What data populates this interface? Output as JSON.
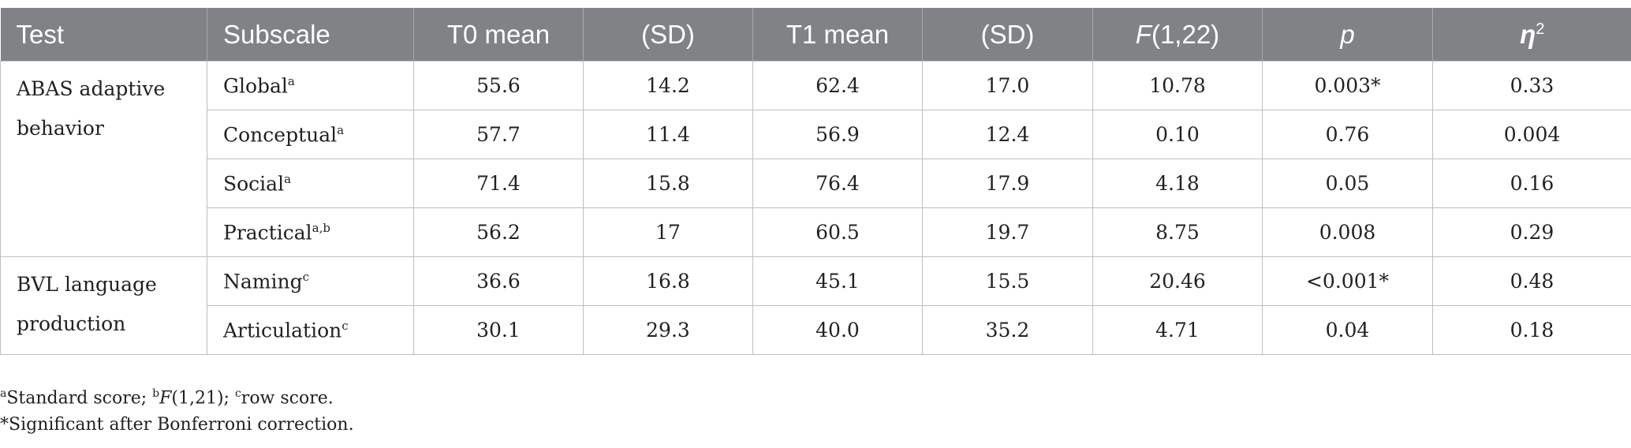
{
  "table": {
    "headers": [
      "Test",
      "Subscale",
      "T0 mean",
      "(SD)",
      "T1 mean",
      "(SD)",
      "F",
      "(1,22)",
      "p",
      "η",
      "2"
    ],
    "groups": [
      {
        "test": "ABAS adaptive behavior"
      },
      {
        "test": "BVL language production"
      }
    ],
    "rows": [
      {
        "subscale": "Global",
        "sup": "a",
        "cells": [
          "55.6",
          "14.2",
          "62.4",
          "17.0",
          "10.78",
          "0.003*",
          "0.33"
        ]
      },
      {
        "subscale": "Conceptual",
        "sup": "a",
        "cells": [
          "57.7",
          "11.4",
          "56.9",
          "12.4",
          "0.10",
          "0.76",
          "0.004"
        ]
      },
      {
        "subscale": "Social",
        "sup": "a",
        "cells": [
          "71.4",
          "15.8",
          "76.4",
          "17.9",
          "4.18",
          "0.05",
          "0.16"
        ]
      },
      {
        "subscale": "Practical",
        "sup": "a,b",
        "cells": [
          "56.2",
          "17",
          "60.5",
          "19.7",
          "8.75",
          "0.008",
          "0.29"
        ]
      },
      {
        "subscale": "Naming",
        "sup": "c",
        "cells": [
          "36.6",
          "16.8",
          "45.1",
          "15.5",
          "20.46",
          "<0.001*",
          "0.48"
        ]
      },
      {
        "subscale": "Articulation",
        "sup": "c",
        "cells": [
          "30.1",
          "29.3",
          "40.0",
          "35.2",
          "4.71",
          "0.04",
          "0.18"
        ]
      }
    ]
  },
  "footnotes": {
    "line1": {
      "a": "a",
      "a_text": "Standard score; ",
      "b": "b",
      "b_f": "F",
      "b_text": "(1,21); ",
      "c": "c",
      "c_text": "row score."
    },
    "line2": "*Significant after Bonferroni correction."
  }
}
